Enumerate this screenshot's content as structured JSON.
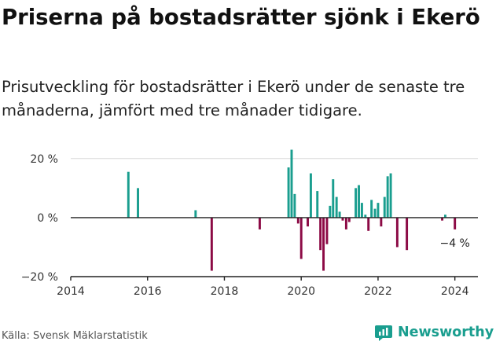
{
  "header": {
    "title": "Priserna på bostadsrätter sjönk i Ekerö",
    "subtitle": "Prisutveckling för bostadsrätter i Ekerö under de senaste tre månaderna, jämfört med tre månader tidigare."
  },
  "footer": {
    "source": "Källa: Svensk Mäklarstatistik",
    "brand": "Newsworthy"
  },
  "colors": {
    "positive": "#1a9e8f",
    "negative": "#8c0a45",
    "grid": "#d9d9d9",
    "axis": "#222222"
  },
  "chart_data": {
    "type": "bar",
    "title": "",
    "xlabel": "",
    "ylabel": "",
    "unit": "%",
    "ylim": [
      -20,
      25
    ],
    "xlim": [
      2014,
      2024.6
    ],
    "y_ticks": [
      {
        "value": 20,
        "label": "20 %"
      },
      {
        "value": 0,
        "label": "0 %"
      },
      {
        "value": -20,
        "label": "−20 %"
      }
    ],
    "x_ticks": [
      {
        "value": 2014,
        "label": "2014"
      },
      {
        "value": 2016,
        "label": "2016"
      },
      {
        "value": 2018,
        "label": "2018"
      },
      {
        "value": 2020,
        "label": "2020"
      },
      {
        "value": 2022,
        "label": "2022"
      },
      {
        "value": 2024,
        "label": "2024"
      }
    ],
    "grid": true,
    "end_label": "−4 %",
    "bar_width_years": 0.06,
    "points": [
      {
        "x": 2015.5,
        "y": 15.5
      },
      {
        "x": 2015.75,
        "y": 10.0
      },
      {
        "x": 2017.25,
        "y": 2.5
      },
      {
        "x": 2017.67,
        "y": -18.0
      },
      {
        "x": 2018.92,
        "y": -4.0
      },
      {
        "x": 2019.67,
        "y": 17.0
      },
      {
        "x": 2019.75,
        "y": 23.0
      },
      {
        "x": 2019.83,
        "y": 8.0
      },
      {
        "x": 2019.92,
        "y": -2.0
      },
      {
        "x": 2020.0,
        "y": -14.0
      },
      {
        "x": 2020.17,
        "y": -3.0
      },
      {
        "x": 2020.25,
        "y": 15.0
      },
      {
        "x": 2020.42,
        "y": 9.0
      },
      {
        "x": 2020.5,
        "y": -11.0
      },
      {
        "x": 2020.58,
        "y": -18.0
      },
      {
        "x": 2020.67,
        "y": -9.0
      },
      {
        "x": 2020.75,
        "y": 4.0
      },
      {
        "x": 2020.83,
        "y": 13.0
      },
      {
        "x": 2020.92,
        "y": 7.0
      },
      {
        "x": 2021.0,
        "y": 2.0
      },
      {
        "x": 2021.08,
        "y": -1.0
      },
      {
        "x": 2021.17,
        "y": -4.0
      },
      {
        "x": 2021.25,
        "y": -1.5
      },
      {
        "x": 2021.42,
        "y": 10.0
      },
      {
        "x": 2021.5,
        "y": 11.0
      },
      {
        "x": 2021.58,
        "y": 5.0
      },
      {
        "x": 2021.67,
        "y": 1.0
      },
      {
        "x": 2021.75,
        "y": -4.5
      },
      {
        "x": 2021.83,
        "y": 6.0
      },
      {
        "x": 2021.92,
        "y": 3.0
      },
      {
        "x": 2022.0,
        "y": 5.0
      },
      {
        "x": 2022.08,
        "y": -3.0
      },
      {
        "x": 2022.17,
        "y": 7.0
      },
      {
        "x": 2022.25,
        "y": 14.0
      },
      {
        "x": 2022.33,
        "y": 15.0
      },
      {
        "x": 2022.5,
        "y": -10.0
      },
      {
        "x": 2022.75,
        "y": -11.0
      },
      {
        "x": 2023.67,
        "y": -1.0
      },
      {
        "x": 2023.75,
        "y": 1.0
      },
      {
        "x": 2024.0,
        "y": -4.0
      }
    ]
  }
}
